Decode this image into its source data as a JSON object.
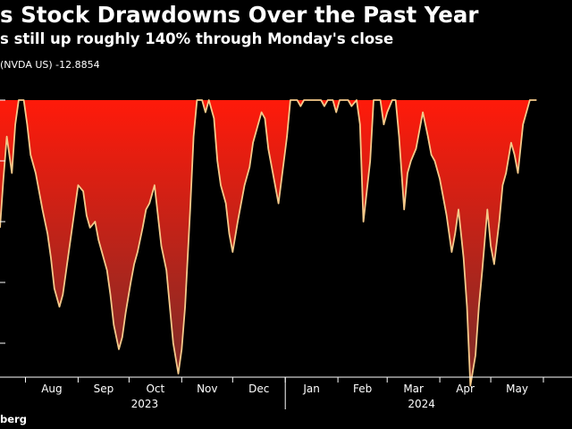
{
  "title": "s Stock Drawdowns Over the Past Year",
  "subtitle": "s still up roughly 140% through Monday's close",
  "legend": {
    "label": "(NVDA US) -12.8854"
  },
  "source": "berg",
  "colors": {
    "background": "#000000",
    "line": "#f4c98a",
    "fill_top": "#ff1a0a",
    "fill_bottom": "#8c2a24"
  },
  "chart_data": {
    "type": "area",
    "legend_placement": "top-left",
    "grid": false,
    "x_tick_labels": [
      "Aug",
      "Sep",
      "Oct",
      "Nov",
      "Dec",
      "Jan",
      "Feb",
      "Mar",
      "Apr",
      "May"
    ],
    "year_labels": [
      "2023",
      "2024"
    ],
    "ylim": [
      -20,
      0
    ],
    "series": [
      {
        "x": [
          "2023-07-17",
          "2023-07-19",
          "2023-07-21",
          "2023-07-24",
          "2023-07-26",
          "2023-07-28",
          "2023-07-31",
          "2023-08-02",
          "2023-08-04",
          "2023-08-07",
          "2023-08-09",
          "2023-08-11",
          "2023-08-14",
          "2023-08-16",
          "2023-08-18",
          "2023-08-21",
          "2023-08-23",
          "2023-08-25",
          "2023-08-28",
          "2023-08-30",
          "2023-09-01",
          "2023-09-04",
          "2023-09-06",
          "2023-09-08",
          "2023-09-11",
          "2023-09-13",
          "2023-09-15",
          "2023-09-18",
          "2023-09-20",
          "2023-09-22",
          "2023-09-25",
          "2023-09-27",
          "2023-09-29",
          "2023-10-02",
          "2023-10-04",
          "2023-10-06",
          "2023-10-09",
          "2023-10-11",
          "2023-10-13",
          "2023-10-16",
          "2023-10-18",
          "2023-10-20",
          "2023-10-23",
          "2023-10-25",
          "2023-10-27",
          "2023-10-30",
          "2023-11-01",
          "2023-11-03",
          "2023-11-06",
          "2023-11-08",
          "2023-11-10",
          "2023-11-13",
          "2023-11-15",
          "2023-11-17",
          "2023-11-20",
          "2023-11-22",
          "2023-11-24",
          "2023-11-27",
          "2023-11-29",
          "2023-12-01",
          "2023-12-04",
          "2023-12-06",
          "2023-12-08",
          "2023-12-11",
          "2023-12-13",
          "2023-12-15",
          "2023-12-18",
          "2023-12-20",
          "2023-12-22",
          "2023-12-26",
          "2023-12-28",
          "2024-01-02",
          "2024-01-04",
          "2024-01-08",
          "2024-01-10",
          "2024-01-12",
          "2024-01-16",
          "2024-01-18",
          "2024-01-22",
          "2024-01-24",
          "2024-01-26",
          "2024-01-29",
          "2024-01-31",
          "2024-02-02",
          "2024-02-05",
          "2024-02-07",
          "2024-02-09",
          "2024-02-12",
          "2024-02-14",
          "2024-02-16",
          "2024-02-20",
          "2024-02-22",
          "2024-02-26",
          "2024-02-28",
          "2024-03-01",
          "2024-03-04",
          "2024-03-06",
          "2024-03-08",
          "2024-03-11",
          "2024-03-13",
          "2024-03-15",
          "2024-03-18",
          "2024-03-20",
          "2024-03-22",
          "2024-03-25",
          "2024-03-27",
          "2024-03-29",
          "2024-04-01",
          "2024-04-03",
          "2024-04-05",
          "2024-04-08",
          "2024-04-10",
          "2024-04-12",
          "2024-04-15",
          "2024-04-17",
          "2024-04-19",
          "2024-04-22",
          "2024-04-24",
          "2024-04-26",
          "2024-04-29",
          "2024-05-01",
          "2024-05-03",
          "2024-05-06",
          "2024-05-08",
          "2024-05-10",
          "2024-05-13",
          "2024-05-15",
          "2024-05-17",
          "2024-05-20",
          "2024-05-22",
          "2024-05-24",
          "2024-05-28"
        ],
        "values": [
          -10.5,
          -6.5,
          -3.0,
          -6.0,
          -2.0,
          0.0,
          0.0,
          -2.0,
          -4.5,
          -6.0,
          -7.5,
          -9.0,
          -11.0,
          -13.0,
          -15.5,
          -17.0,
          -16.0,
          -14.0,
          -11.0,
          -9.0,
          -7.0,
          -7.5,
          -9.5,
          -10.5,
          -10.0,
          -11.5,
          -12.5,
          -14.0,
          -16.0,
          -18.5,
          -20.5,
          -19.5,
          -17.5,
          -15.0,
          -13.5,
          -12.5,
          -10.5,
          -9.0,
          -8.5,
          -7.0,
          -9.5,
          -12.0,
          -14.0,
          -17.0,
          -20.0,
          -22.5,
          -20.5,
          -17.0,
          -9.0,
          -3.0,
          0.0,
          0.0,
          -1.0,
          0.0,
          -1.5,
          -5.0,
          -7.0,
          -8.5,
          -11.0,
          -12.5,
          -10.0,
          -8.5,
          -7.0,
          -5.5,
          -3.5,
          -2.5,
          -1.0,
          -1.5,
          -4.0,
          -7.0,
          -8.5,
          -3.0,
          0.0,
          0.0,
          -0.5,
          0.0,
          0.0,
          0.0,
          0.0,
          -0.5,
          0.0,
          0.0,
          -1.0,
          0.0,
          0.0,
          0.0,
          -0.5,
          0.0,
          -2.0,
          -10.0,
          -5.0,
          0.0,
          0.0,
          -2.0,
          -1.0,
          0.0,
          0.0,
          -3.0,
          -9.0,
          -6.0,
          -5.0,
          -4.0,
          -2.5,
          -1.0,
          -3.0,
          -4.5,
          -5.0,
          -6.5,
          -8.0,
          -9.5,
          -12.5,
          -11.0,
          -9.0,
          -13.0,
          -17.0,
          -23.5,
          -21.0,
          -17.0,
          -14.0,
          -9.0,
          -12.0,
          -13.5,
          -10.0,
          -7.0,
          -6.0,
          -3.5,
          -4.5,
          -6.0,
          -2.0,
          -1.0,
          0.0,
          0.0
        ]
      }
    ]
  }
}
